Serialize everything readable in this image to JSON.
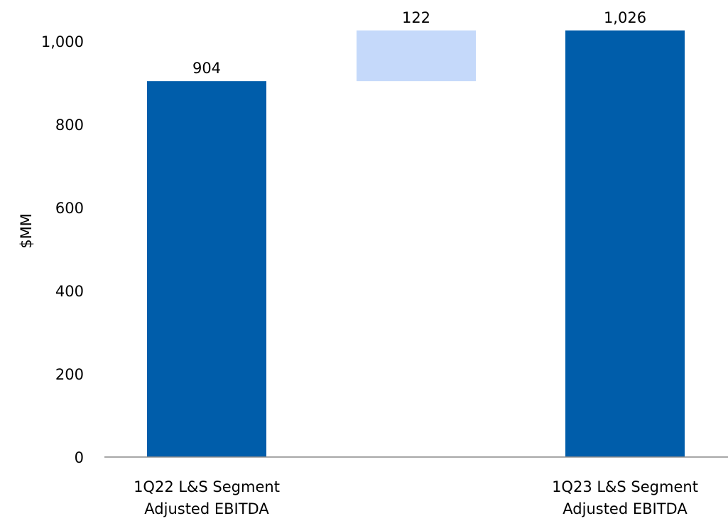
{
  "chart_data": {
    "type": "bar",
    "subtype": "waterfall",
    "ylabel": "$MM",
    "ylim": [
      0,
      1000
    ],
    "yticks": [
      "0",
      "200",
      "400",
      "600",
      "800",
      "1,000"
    ],
    "grid": false,
    "legend": "none",
    "categories": [
      [
        "1Q22 L&S Segment",
        "Adjusted EBITDA"
      ],
      [
        "",
        ""
      ],
      [
        "1Q23 L&S Segment",
        "Adjusted EBITDA"
      ]
    ],
    "bars": [
      {
        "kind": "total",
        "base": 0,
        "value": 904,
        "label": "904",
        "color": "#005DAA"
      },
      {
        "kind": "delta",
        "base": 904,
        "value": 122,
        "label": "122",
        "color": "#C5D9FA"
      },
      {
        "kind": "total",
        "base": 0,
        "value": 1026,
        "label": "1,026",
        "color": "#005DAA"
      }
    ]
  }
}
